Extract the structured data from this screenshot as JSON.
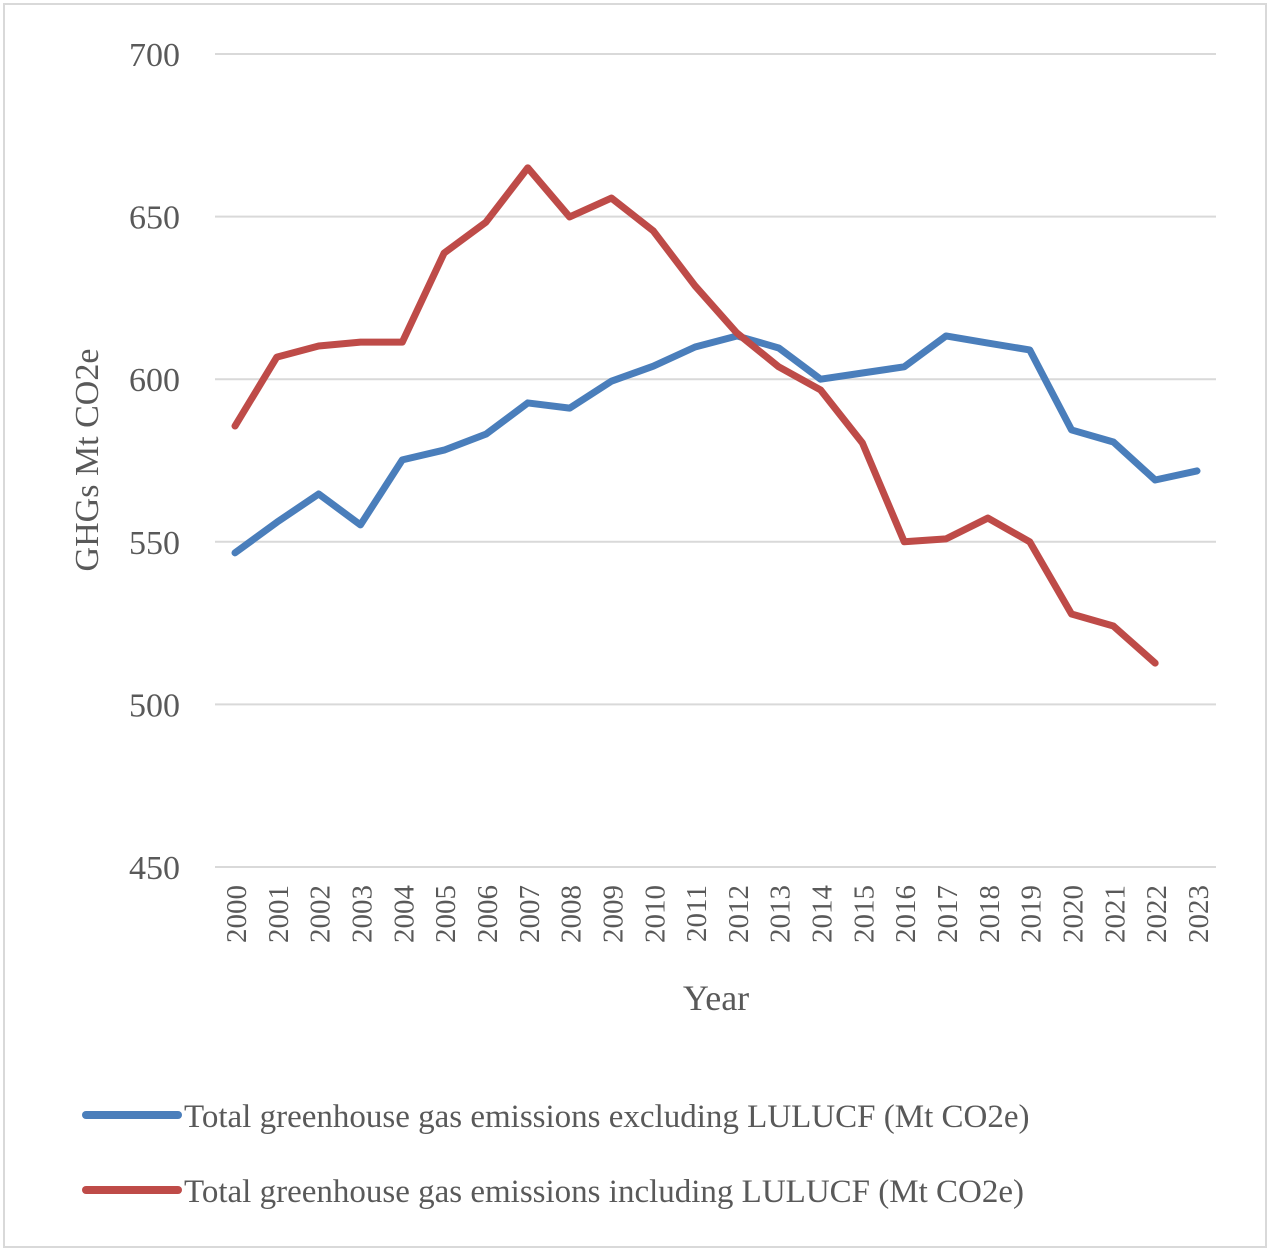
{
  "chart_data": {
    "type": "line",
    "title": "",
    "xlabel": "Year",
    "ylabel": "GHGs Mt CO2e",
    "ylim": [
      450,
      700
    ],
    "yticks": [
      450,
      500,
      550,
      600,
      650,
      700
    ],
    "grid": true,
    "legend_position": "bottom",
    "categories": [
      "2000",
      "2001",
      "2002",
      "2003",
      "2004",
      "2005",
      "2006",
      "2007",
      "2008",
      "2009",
      "2010",
      "2011",
      "2012",
      "2013",
      "2014",
      "2015",
      "2016",
      "2017",
      "2018",
      "2019",
      "2020",
      "2021",
      "2022",
      "2023"
    ],
    "series": [
      {
        "name": "Total greenhouse gas emissions excluding LULUCF (Mt CO2e)",
        "color": "#4a7ebb",
        "values": [
          546.6,
          556,
          564.7,
          555.2,
          575.2,
          578.2,
          583.1,
          592.7,
          591.1,
          599.4,
          604,
          609.9,
          613.3,
          609.6,
          600,
          601.9,
          603.8,
          613.3,
          611.1,
          609,
          584.4,
          580.7,
          569,
          571.8
        ]
      },
      {
        "name": "Total greenhouse gas emissions including LULUCF (Mt CO2e)",
        "color": "#be4b48",
        "values": [
          585.6,
          606.8,
          610.2,
          611.4,
          611.4,
          638.8,
          648.3,
          665,
          649.9,
          655.7,
          645.6,
          628.7,
          614.2,
          603.8,
          596.7,
          580.4,
          550,
          550.9,
          557.3,
          550,
          527.8,
          524.1,
          512.7,
          null
        ]
      }
    ]
  }
}
